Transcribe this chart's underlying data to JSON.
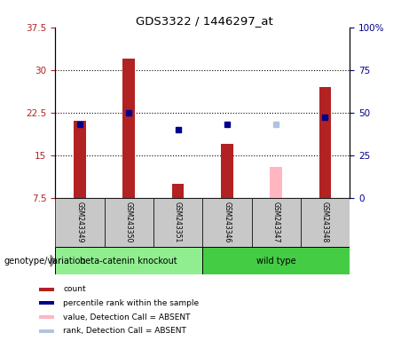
{
  "title": "GDS3322 / 1446297_at",
  "samples": [
    "GSM243349",
    "GSM243350",
    "GSM243351",
    "GSM243346",
    "GSM243347",
    "GSM243348"
  ],
  "count_values": [
    21.0,
    32.0,
    10.0,
    17.0,
    null,
    27.0
  ],
  "count_absent": [
    null,
    null,
    null,
    null,
    13.0,
    null
  ],
  "rank_values": [
    43,
    50,
    40,
    43,
    null,
    47
  ],
  "rank_absent": [
    null,
    null,
    null,
    null,
    43,
    null
  ],
  "bar_color": "#b22222",
  "bar_absent_color": "#ffb6c1",
  "rank_color": "#00008b",
  "rank_absent_color": "#b0c4de",
  "left_ylim": [
    7.5,
    37.5
  ],
  "left_yticks": [
    7.5,
    15.0,
    22.5,
    30.0,
    37.5
  ],
  "right_ylim": [
    0,
    100
  ],
  "right_yticks": [
    0,
    25,
    50,
    75,
    100
  ],
  "hline_values": [
    15.0,
    22.5,
    30.0
  ],
  "groups": [
    {
      "label": "beta-catenin knockout",
      "indices": [
        0,
        1,
        2
      ],
      "color": "#90ee90"
    },
    {
      "label": "wild type",
      "indices": [
        3,
        4,
        5
      ],
      "color": "#44cc44"
    }
  ],
  "legend_items": [
    {
      "label": "count",
      "color": "#b22222"
    },
    {
      "label": "percentile rank within the sample",
      "color": "#00008b"
    },
    {
      "label": "value, Detection Call = ABSENT",
      "color": "#ffb6c1"
    },
    {
      "label": "rank, Detection Call = ABSENT",
      "color": "#b0c4de"
    }
  ],
  "bg_color_main": "#ffffff",
  "bar_width": 0.25
}
